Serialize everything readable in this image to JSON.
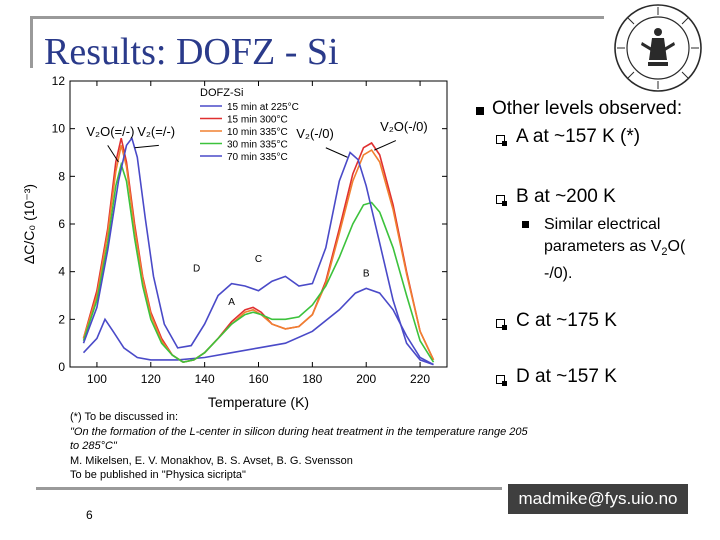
{
  "slide": {
    "title": "Results: DOFZ - Si",
    "page_number": "6",
    "email": "madmike@fys.uio.no"
  },
  "chart_data": {
    "type": "line",
    "title": "DOFZ-Si",
    "xlabel": "Temperature (K)",
    "ylabel": "ΔC/C₀ (10⁻³)",
    "xlim": [
      90,
      230
    ],
    "ylim": [
      0,
      12
    ],
    "x_ticks": [
      100,
      120,
      140,
      160,
      180,
      200,
      220
    ],
    "y_ticks": [
      0,
      2,
      4,
      6,
      8,
      10,
      12
    ],
    "legend_position": "top-center",
    "series": [
      {
        "name": "15 min at 225°C",
        "color": "#4a4ac8",
        "points": [
          [
            95,
            0.6
          ],
          [
            100,
            1.2
          ],
          [
            103,
            2.0
          ],
          [
            106,
            1.5
          ],
          [
            110,
            0.8
          ],
          [
            115,
            0.4
          ],
          [
            120,
            0.3
          ],
          [
            130,
            0.3
          ],
          [
            140,
            0.4
          ],
          [
            150,
            0.6
          ],
          [
            160,
            0.8
          ],
          [
            170,
            1.0
          ],
          [
            180,
            1.5
          ],
          [
            190,
            2.4
          ],
          [
            196,
            3.1
          ],
          [
            200,
            3.3
          ],
          [
            205,
            3.1
          ],
          [
            210,
            2.4
          ],
          [
            215,
            1.3
          ],
          [
            220,
            0.4
          ],
          [
            225,
            0.1
          ]
        ]
      },
      {
        "name": "15 min 300°C",
        "color": "#e03030",
        "points": [
          [
            95,
            1.2
          ],
          [
            100,
            3.2
          ],
          [
            104,
            5.8
          ],
          [
            107,
            8.6
          ],
          [
            109,
            9.6
          ],
          [
            111,
            8.6
          ],
          [
            114,
            6.0
          ],
          [
            117,
            3.8
          ],
          [
            120,
            2.3
          ],
          [
            124,
            1.2
          ],
          [
            128,
            0.5
          ],
          [
            132,
            0.2
          ],
          [
            136,
            0.3
          ],
          [
            140,
            0.6
          ],
          [
            145,
            1.2
          ],
          [
            150,
            1.9
          ],
          [
            155,
            2.4
          ],
          [
            158,
            2.5
          ],
          [
            161,
            2.3
          ],
          [
            165,
            1.8
          ],
          [
            170,
            1.6
          ],
          [
            175,
            1.7
          ],
          [
            180,
            2.2
          ],
          [
            185,
            3.6
          ],
          [
            190,
            5.8
          ],
          [
            195,
            8.1
          ],
          [
            199,
            9.2
          ],
          [
            202,
            9.4
          ],
          [
            205,
            8.9
          ],
          [
            210,
            6.8
          ],
          [
            215,
            4.0
          ],
          [
            220,
            1.5
          ],
          [
            225,
            0.3
          ]
        ]
      },
      {
        "name": "10 min 335°C",
        "color": "#f08030",
        "points": [
          [
            95,
            1.2
          ],
          [
            100,
            3.0
          ],
          [
            104,
            5.6
          ],
          [
            107,
            8.2
          ],
          [
            109,
            9.3
          ],
          [
            111,
            8.4
          ],
          [
            114,
            5.8
          ],
          [
            117,
            3.7
          ],
          [
            120,
            2.2
          ],
          [
            124,
            1.1
          ],
          [
            128,
            0.5
          ],
          [
            132,
            0.2
          ],
          [
            136,
            0.3
          ],
          [
            140,
            0.6
          ],
          [
            145,
            1.2
          ],
          [
            150,
            1.8
          ],
          [
            155,
            2.3
          ],
          [
            158,
            2.4
          ],
          [
            161,
            2.2
          ],
          [
            165,
            1.8
          ],
          [
            170,
            1.6
          ],
          [
            175,
            1.7
          ],
          [
            180,
            2.2
          ],
          [
            185,
            3.5
          ],
          [
            190,
            5.6
          ],
          [
            195,
            7.8
          ],
          [
            199,
            8.9
          ],
          [
            202,
            9.1
          ],
          [
            205,
            8.6
          ],
          [
            210,
            6.6
          ],
          [
            215,
            3.9
          ],
          [
            220,
            1.5
          ],
          [
            225,
            0.3
          ]
        ]
      },
      {
        "name": "30 min 335°C",
        "color": "#3cc23c",
        "points": [
          [
            95,
            1.1
          ],
          [
            100,
            2.8
          ],
          [
            104,
            5.2
          ],
          [
            107,
            7.6
          ],
          [
            109,
            8.5
          ],
          [
            111,
            7.8
          ],
          [
            114,
            5.4
          ],
          [
            117,
            3.4
          ],
          [
            120,
            2.0
          ],
          [
            124,
            1.0
          ],
          [
            128,
            0.5
          ],
          [
            132,
            0.2
          ],
          [
            136,
            0.3
          ],
          [
            140,
            0.6
          ],
          [
            145,
            1.2
          ],
          [
            150,
            1.8
          ],
          [
            155,
            2.2
          ],
          [
            158,
            2.3
          ],
          [
            161,
            2.2
          ],
          [
            165,
            2.0
          ],
          [
            170,
            2.0
          ],
          [
            175,
            2.1
          ],
          [
            180,
            2.6
          ],
          [
            185,
            3.4
          ],
          [
            190,
            4.6
          ],
          [
            195,
            6.0
          ],
          [
            199,
            6.8
          ],
          [
            202,
            6.9
          ],
          [
            205,
            6.5
          ],
          [
            210,
            5.0
          ],
          [
            215,
            3.0
          ],
          [
            220,
            1.1
          ],
          [
            225,
            0.2
          ]
        ]
      },
      {
        "name": "70 min 335°C",
        "color": "#4a4ac8",
        "points": [
          [
            95,
            1.0
          ],
          [
            100,
            2.5
          ],
          [
            104,
            4.9
          ],
          [
            108,
            7.8
          ],
          [
            111,
            9.3
          ],
          [
            113,
            9.6
          ],
          [
            115,
            8.8
          ],
          [
            118,
            6.2
          ],
          [
            121,
            3.8
          ],
          [
            125,
            1.8
          ],
          [
            130,
            0.8
          ],
          [
            135,
            0.9
          ],
          [
            140,
            1.8
          ],
          [
            145,
            3.0
          ],
          [
            150,
            3.5
          ],
          [
            155,
            3.4
          ],
          [
            160,
            3.2
          ],
          [
            165,
            3.6
          ],
          [
            170,
            3.8
          ],
          [
            175,
            3.4
          ],
          [
            180,
            3.5
          ],
          [
            185,
            5.0
          ],
          [
            190,
            7.8
          ],
          [
            194,
            9.0
          ],
          [
            197,
            8.7
          ],
          [
            200,
            7.6
          ],
          [
            205,
            5.2
          ],
          [
            210,
            2.8
          ],
          [
            215,
            1.0
          ],
          [
            220,
            0.3
          ],
          [
            225,
            0.1
          ]
        ]
      }
    ],
    "annotations": [
      {
        "text": "V₂O(=/-)",
        "x": 105,
        "y": 9.7
      },
      {
        "text": "V₂(=/-)",
        "x": 122,
        "y": 9.7
      },
      {
        "text": "V₂(-/0)",
        "x": 181,
        "y": 9.6
      },
      {
        "text": "V₂O(-/0)",
        "x": 214,
        "y": 9.9
      },
      {
        "text": "D",
        "x": 137,
        "y": 4.0
      },
      {
        "text": "C",
        "x": 160,
        "y": 4.4
      },
      {
        "text": "A",
        "x": 150,
        "y": 2.6
      },
      {
        "text": "B",
        "x": 200,
        "y": 3.8
      }
    ]
  },
  "bullets": {
    "b1": "Other levels observed:",
    "b2": "A at ~157 K (*)",
    "b3": "B at ~200 K",
    "b4_pre": "Similar electrical parameters as V",
    "b4_sub": "2",
    "b4_post": "O( -/0).",
    "b5": "C at ~175 K",
    "b6": "D at ~157 K"
  },
  "footnote": {
    "line1": "(*) To be discussed in:",
    "line2": "\"On the formation of the L-center in silicon during heat treatment in the temperature range 205",
    "line3": "to 285°C\"",
    "line4": "M. Mikelsen, E. V. Monakhov, B. S. Avset, B. G. Svensson",
    "line5": "To be published in \"Physica sicripta\""
  }
}
